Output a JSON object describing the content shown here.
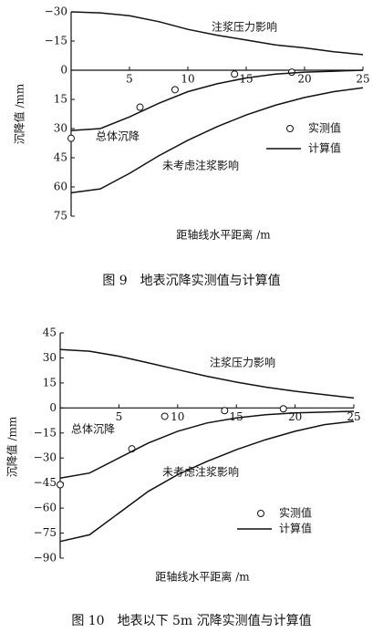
{
  "chart_data": [
    {
      "type": "line",
      "title": "图 9　地表沉降实测值与计算值",
      "x_label": "距轴线水平距离 /m",
      "y_label": "沉降值 /mm",
      "xlim": [
        0,
        25
      ],
      "xticks": [
        5,
        10,
        15,
        20,
        25
      ],
      "ylim": [
        75,
        -30
      ],
      "yticks": [
        {
          "value": -30,
          "label": "−30"
        },
        {
          "value": -15,
          "label": "−15"
        },
        0,
        15,
        30,
        45,
        60,
        75
      ],
      "color": "#111111",
      "computed_label": "计算值",
      "series": [
        {
          "name": "实测值",
          "marker": "circle",
          "x": [
            0,
            5.9,
            8.9,
            14,
            18.9
          ],
          "values": [
            35,
            19,
            10,
            2,
            1
          ]
        },
        {
          "name": "注浆压力影响",
          "x": [
            0,
            2.5,
            5,
            7.5,
            10,
            12.5,
            15,
            17.5,
            20,
            22.5,
            25
          ],
          "values": [
            -30,
            -29.5,
            -28,
            -25,
            -21,
            -18,
            -15.5,
            -13,
            -11.5,
            -9.5,
            -8
          ]
        },
        {
          "name": "总体沉降",
          "x": [
            0,
            2.5,
            5,
            7.5,
            10,
            12.5,
            15,
            17.5,
            20,
            22.5,
            25
          ],
          "values": [
            31,
            30,
            24,
            17,
            11,
            7,
            4,
            2,
            1,
            0.5,
            0
          ]
        },
        {
          "name": "未考虑注浆影响",
          "x": [
            0,
            2.5,
            5,
            7.5,
            10,
            12.5,
            15,
            17.5,
            20,
            22.5,
            25
          ],
          "values": [
            63,
            61,
            53,
            44,
            36,
            29,
            23,
            18,
            14,
            11,
            9
          ]
        }
      ]
    },
    {
      "type": "line",
      "title": "图 10　地表以下 5m 沉降实测值与计算值",
      "x_label": "距轴线水平距离 /m",
      "y_label": "沉降值 /mm",
      "xlim": [
        0,
        25
      ],
      "xticks": [
        5,
        10,
        15,
        20,
        25
      ],
      "ylim": [
        -90,
        45
      ],
      "yticks": [
        45,
        30,
        15,
        0,
        {
          "value": -15,
          "label": "−15"
        },
        {
          "value": -30,
          "label": "−30"
        },
        {
          "value": -45,
          "label": "−45"
        },
        {
          "value": -60,
          "label": "−60"
        },
        {
          "value": -75,
          "label": "−75"
        },
        {
          "value": -90,
          "label": "−90"
        }
      ],
      "color": "#111111",
      "computed_label": "计算值",
      "series": [
        {
          "name": "实测值",
          "marker": "circle",
          "x": [
            0,
            6.1,
            8.9,
            14,
            19
          ],
          "values": [
            -46,
            -24.5,
            -5,
            -1.6,
            -0.5
          ]
        },
        {
          "name": "注浆压力影响",
          "x": [
            0,
            2.5,
            5,
            7.5,
            10,
            12.5,
            15,
            17.5,
            20,
            22.5,
            25
          ],
          "values": [
            35,
            34,
            31,
            27,
            23,
            19,
            15.5,
            12.5,
            10,
            8,
            6
          ]
        },
        {
          "name": "总体沉降",
          "x": [
            0,
            2.5,
            5,
            7.5,
            10,
            12.5,
            15,
            17.5,
            20,
            22.5,
            25
          ],
          "values": [
            -42,
            -39,
            -30,
            -21,
            -14,
            -9,
            -6,
            -4,
            -3,
            -2.5,
            -2
          ]
        },
        {
          "name": "未考虑注浆影响",
          "x": [
            0,
            2.5,
            5,
            7.5,
            10,
            12.5,
            15,
            17.5,
            20,
            22.5,
            25
          ],
          "values": [
            -80,
            -76,
            -63,
            -50,
            -40,
            -32,
            -25,
            -19,
            -14,
            -10,
            -8
          ]
        }
      ]
    }
  ]
}
